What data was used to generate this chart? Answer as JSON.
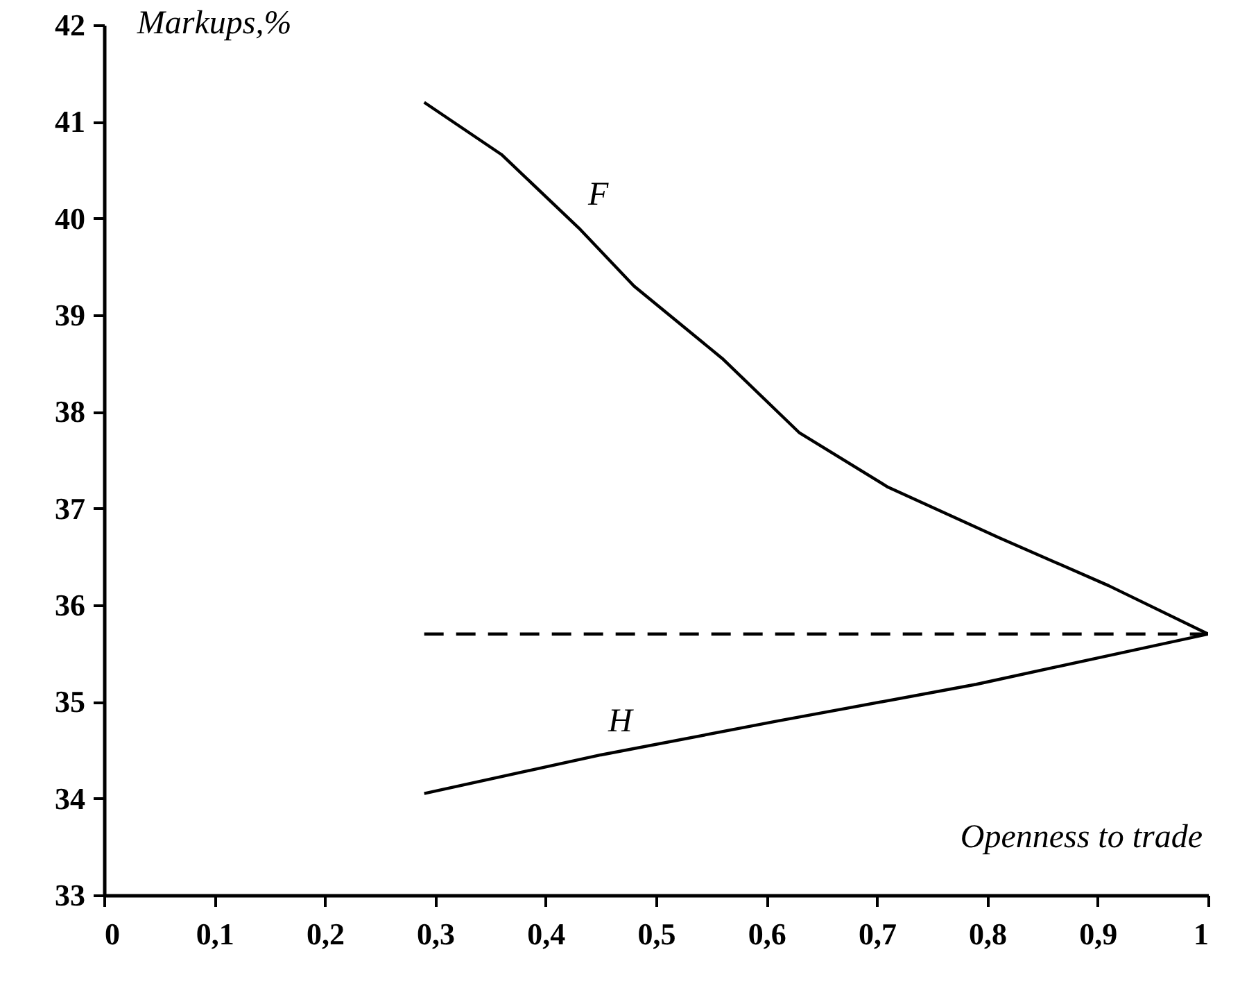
{
  "chart_data": {
    "type": "line",
    "xlabel": "Openness to trade",
    "ylabel": "Markups,%",
    "xlim": [
      0,
      1
    ],
    "ylim": [
      33,
      42
    ],
    "xticks": [
      0,
      {
        "value": 0.1,
        "label": "0,1"
      },
      {
        "value": 0.2,
        "label": "0,2"
      },
      {
        "value": 0.3,
        "label": "0,3"
      },
      {
        "value": 0.4,
        "label": "0,4"
      },
      {
        "value": 0.5,
        "label": "0,5"
      },
      {
        "value": 0.6,
        "label": "0,6"
      },
      {
        "value": 0.7,
        "label": "0,7"
      },
      {
        "value": 0.8,
        "label": "0,8"
      },
      {
        "value": 0.9,
        "label": "0,9"
      },
      1
    ],
    "yticks": [
      33,
      34,
      35,
      36,
      37,
      38,
      39,
      40,
      41,
      42
    ],
    "marker": "none",
    "series": [
      {
        "name": "F",
        "color": "#000000",
        "line_style": "solid",
        "x": [
          0.29,
          0.36,
          0.43,
          0.48,
          0.56,
          0.63,
          0.71,
          0.81,
          0.91,
          1.0
        ],
        "values": [
          41.2,
          40.66,
          39.9,
          39.3,
          38.55,
          37.78,
          37.22,
          36.7,
          36.2,
          35.7
        ]
      },
      {
        "name": "H",
        "color": "#000000",
        "line_style": "solid",
        "x": [
          0.29,
          0.45,
          0.61,
          0.79,
          1.0
        ],
        "values": [
          34.05,
          34.45,
          34.8,
          35.18,
          35.7
        ]
      },
      {
        "color": "#000000",
        "line_style": "dashed",
        "x": [
          0.29,
          1.0
        ],
        "values": [
          35.7,
          35.7
        ]
      }
    ]
  }
}
